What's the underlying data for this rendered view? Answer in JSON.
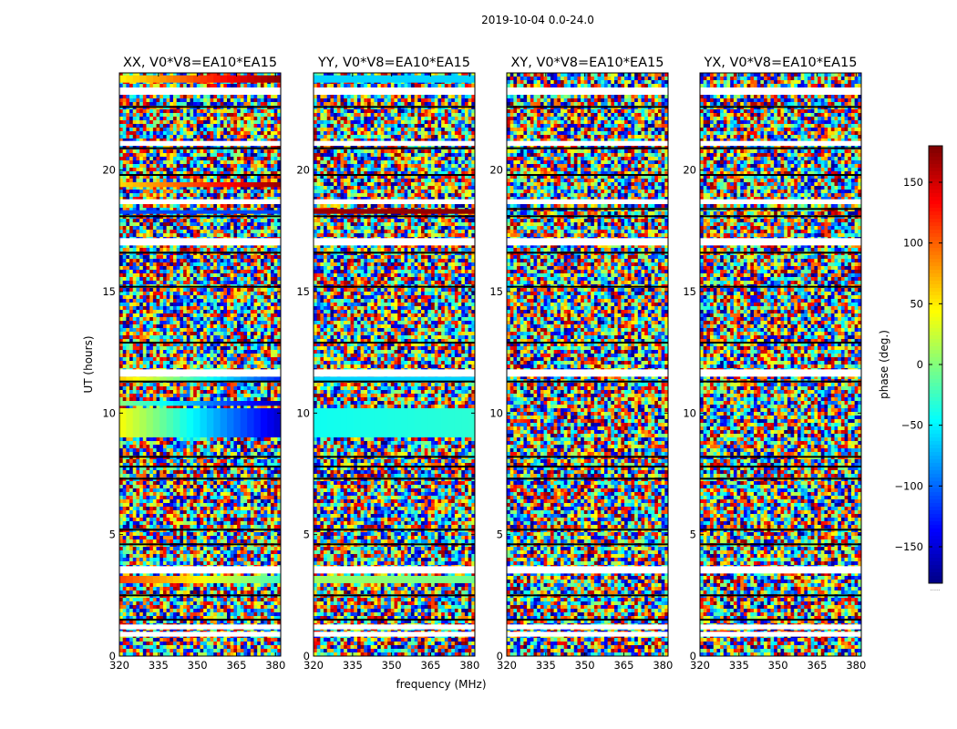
{
  "figure": {
    "suptitle": "2019-10-04 0.0-24.0"
  },
  "chart_data": {
    "type": "heatmap",
    "xlabel": "frequency (MHz)",
    "ylabel": "UT (hours)",
    "xlim": [
      320,
      382
    ],
    "ylim": [
      0,
      24
    ],
    "xticks": [
      320,
      335,
      350,
      365,
      380
    ],
    "yticks": [
      0,
      5,
      10,
      15,
      20
    ],
    "colormap": "jet",
    "colorbar": {
      "label": "phase (deg.)",
      "range": [
        -180,
        180
      ],
      "ticks": [
        -150,
        -100,
        -50,
        0,
        50,
        100,
        150
      ],
      "extra_label": "......"
    },
    "panels": [
      {
        "title": "XX, V0*V8=EA10*EA15",
        "white_bands": [
          [
            0.8,
            1.0
          ],
          [
            1.1,
            1.3
          ],
          [
            3.4,
            3.7
          ],
          [
            11.5,
            11.8
          ],
          [
            16.9,
            17.2
          ],
          [
            18.6,
            18.8
          ],
          [
            21.0,
            21.2
          ],
          [
            23.1,
            23.4
          ]
        ],
        "black_lines": [
          1.5,
          2.5,
          4.6,
          5.2,
          7.3,
          7.8,
          8.2,
          11.3,
          12.9,
          15.2,
          16.6,
          18.1,
          19.8,
          20.9,
          22.6
        ],
        "coherent_bands": [
          {
            "y": [
              10.3,
              10.5
            ],
            "phase_start": 0,
            "phase_end": -160
          },
          {
            "y": [
              11.3,
              11.5
            ],
            "phase_start": 60,
            "phase_end": -120
          },
          {
            "y": [
              9.0,
              10.2
            ],
            "phase_start": 40,
            "phase_end": -150
          },
          {
            "y": [
              3.0,
              3.3
            ],
            "phase_start": 110,
            "phase_end": -20
          },
          {
            "y": [
              19.3,
              19.5
            ],
            "phase_start": 60,
            "phase_end": 170
          },
          {
            "y": [
              23.6,
              23.9
            ],
            "phase_start": 50,
            "phase_end": 175
          },
          {
            "y": [
              18.2,
              18.35
            ],
            "phase_start": -110,
            "phase_end": -110
          }
        ]
      },
      {
        "title": "YY, V0*V8=EA10*EA15",
        "white_bands": [
          [
            0.8,
            1.0
          ],
          [
            1.1,
            1.3
          ],
          [
            3.4,
            3.7
          ],
          [
            11.5,
            11.8
          ],
          [
            16.9,
            17.2
          ],
          [
            18.6,
            18.8
          ],
          [
            21.0,
            21.2
          ],
          [
            23.1,
            23.4
          ]
        ],
        "black_lines": [
          1.5,
          2.5,
          4.6,
          5.2,
          7.3,
          7.8,
          8.2,
          11.3,
          12.9,
          15.2,
          16.6,
          18.1,
          19.8,
          20.9,
          22.6
        ],
        "coherent_bands": [
          {
            "y": [
              9.0,
              10.2
            ],
            "phase_start": -40,
            "phase_end": -30
          },
          {
            "y": [
              11.3,
              11.5
            ],
            "phase_start": -60,
            "phase_end": -60
          },
          {
            "y": [
              3.0,
              3.3
            ],
            "phase_start": 10,
            "phase_end": -5
          },
          {
            "y": [
              18.2,
              18.4
            ],
            "phase_start": 170,
            "phase_end": 175
          },
          {
            "y": [
              23.6,
              23.9
            ],
            "phase_start": -60,
            "phase_end": -60
          }
        ]
      },
      {
        "title": "XY, V0*V8=EA10*EA15",
        "white_bands": [
          [
            0.8,
            1.0
          ],
          [
            1.1,
            1.3
          ],
          [
            3.4,
            3.7
          ],
          [
            11.5,
            11.8
          ],
          [
            16.9,
            17.2
          ],
          [
            18.6,
            18.8
          ],
          [
            21.0,
            21.2
          ],
          [
            23.1,
            23.4
          ]
        ],
        "black_lines": [
          1.5,
          2.5,
          4.6,
          5.2,
          7.3,
          7.8,
          8.2,
          11.3,
          12.9,
          15.2,
          16.6,
          18.1,
          18.4,
          19.8,
          20.9,
          22.6
        ],
        "coherent_bands": []
      },
      {
        "title": "YX, V0*V8=EA10*EA15",
        "white_bands": [
          [
            0.8,
            1.0
          ],
          [
            1.1,
            1.3
          ],
          [
            3.4,
            3.7
          ],
          [
            11.5,
            11.8
          ],
          [
            16.9,
            17.2
          ],
          [
            18.6,
            18.8
          ],
          [
            21.0,
            21.2
          ],
          [
            23.1,
            23.4
          ]
        ],
        "black_lines": [
          1.5,
          2.5,
          4.6,
          5.2,
          7.3,
          7.8,
          8.2,
          11.3,
          12.9,
          15.2,
          16.6,
          18.1,
          18.4,
          19.8,
          20.9,
          22.6
        ],
        "coherent_bands": []
      }
    ]
  }
}
